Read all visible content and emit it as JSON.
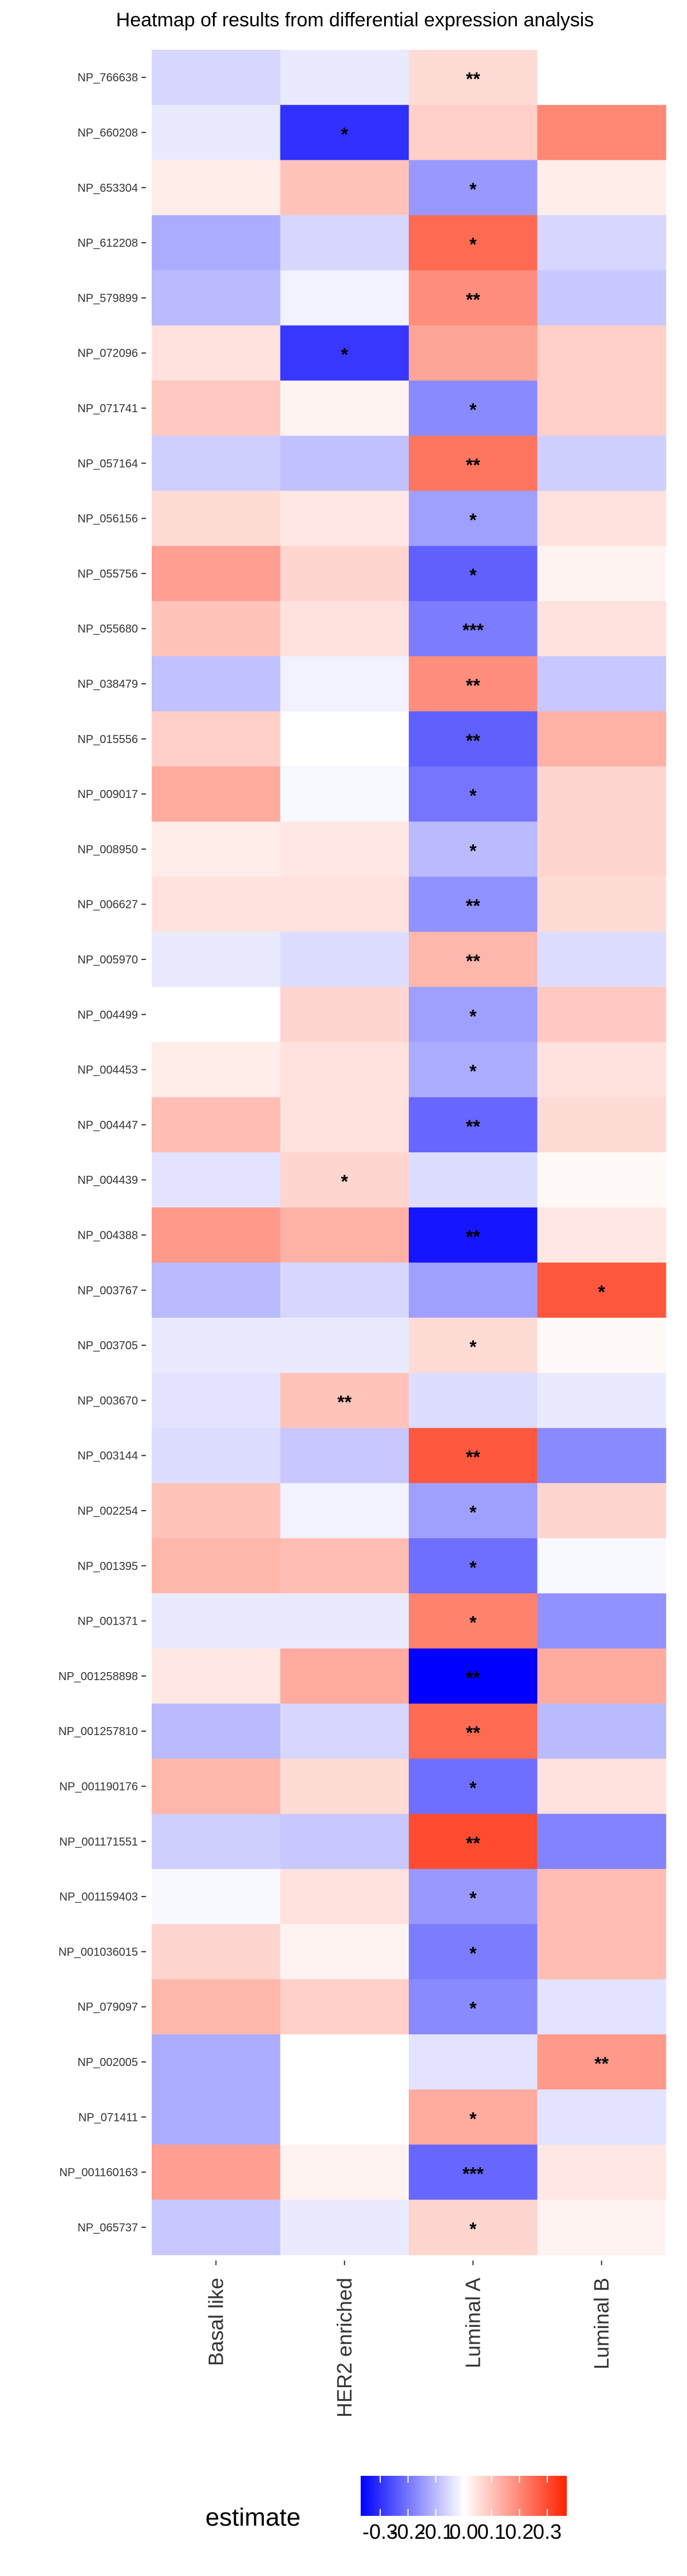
{
  "chart_data": {
    "type": "heatmap",
    "title": "Heatmap of results from differential expression analysis",
    "columns": [
      "Basal like",
      "HER2 enriched",
      "Luminal A",
      "Luminal B"
    ],
    "rows": [
      "NP_766638",
      "NP_660208",
      "NP_653304",
      "NP_612208",
      "NP_579899",
      "NP_072096",
      "NP_071741",
      "NP_057164",
      "NP_056156",
      "NP_055756",
      "NP_055680",
      "NP_038479",
      "NP_015556",
      "NP_009017",
      "NP_008950",
      "NP_006627",
      "NP_005970",
      "NP_004499",
      "NP_004453",
      "NP_004447",
      "NP_004439",
      "NP_004388",
      "NP_003767",
      "NP_003705",
      "NP_003670",
      "NP_003144",
      "NP_002254",
      "NP_001395",
      "NP_001371",
      "NP_001258898",
      "NP_001257810",
      "NP_001190176",
      "NP_001171551",
      "NP_001159403",
      "NP_001036015",
      "NP_079097",
      "NP_002005",
      "NP_071411",
      "NP_001160163",
      "NP_065737"
    ],
    "values": [
      [
        -0.06,
        -0.03,
        0.06,
        null
      ],
      [
        -0.03,
        -0.3,
        0.08,
        0.2
      ],
      [
        0.03,
        0.1,
        -0.15,
        0.03
      ],
      [
        -0.12,
        -0.06,
        0.25,
        -0.06
      ],
      [
        -0.1,
        -0.02,
        0.19,
        -0.08
      ],
      [
        0.05,
        -0.29,
        0.15,
        0.08
      ],
      [
        0.09,
        0.02,
        -0.17,
        0.08
      ],
      [
        -0.07,
        -0.09,
        0.23,
        -0.07
      ],
      [
        0.06,
        0.04,
        -0.14,
        0.05
      ],
      [
        0.16,
        0.07,
        -0.23,
        0.02
      ],
      [
        0.1,
        0.05,
        -0.19,
        0.05
      ],
      [
        -0.09,
        -0.02,
        0.19,
        -0.08
      ],
      [
        0.08,
        0.0,
        -0.23,
        0.13
      ],
      [
        0.14,
        -0.01,
        -0.2,
        0.07
      ],
      [
        0.03,
        0.04,
        -0.1,
        0.07
      ],
      [
        0.05,
        0.05,
        -0.16,
        0.06
      ],
      [
        -0.03,
        -0.05,
        0.12,
        -0.05
      ],
      [
        0.0,
        0.07,
        -0.14,
        0.09
      ],
      [
        0.03,
        0.05,
        -0.12,
        0.05
      ],
      [
        0.11,
        0.05,
        -0.22,
        0.06
      ],
      [
        -0.04,
        0.07,
        -0.05,
        0.01
      ],
      [
        0.17,
        0.13,
        -0.34,
        0.04
      ],
      [
        -0.1,
        -0.06,
        -0.14,
        0.28
      ],
      [
        -0.03,
        -0.03,
        0.06,
        0.01
      ],
      [
        -0.04,
        0.1,
        -0.05,
        -0.03
      ],
      [
        -0.05,
        -0.08,
        0.28,
        -0.17
      ],
      [
        0.1,
        -0.02,
        -0.14,
        0.07
      ],
      [
        0.12,
        0.11,
        -0.21,
        -0.01
      ],
      [
        -0.03,
        -0.03,
        0.21,
        -0.16
      ],
      [
        0.04,
        0.14,
        -0.37,
        0.14
      ],
      [
        -0.1,
        -0.06,
        0.25,
        -0.1
      ],
      [
        0.12,
        0.06,
        -0.21,
        0.05
      ],
      [
        -0.07,
        -0.08,
        0.3,
        -0.18
      ],
      [
        -0.01,
        0.05,
        -0.15,
        0.11
      ],
      [
        0.07,
        0.02,
        -0.19,
        0.11
      ],
      [
        0.12,
        0.08,
        -0.17,
        -0.04
      ],
      [
        -0.12,
        0.0,
        -0.04,
        0.17
      ],
      [
        -0.12,
        0.0,
        0.14,
        -0.04
      ],
      [
        0.16,
        0.02,
        -0.22,
        0.04
      ],
      [
        -0.08,
        -0.03,
        0.07,
        0.02
      ]
    ],
    "significance": [
      [
        "",
        "",
        "**",
        ""
      ],
      [
        "",
        "*",
        "",
        ""
      ],
      [
        "",
        "",
        "*",
        ""
      ],
      [
        "",
        "",
        "*",
        ""
      ],
      [
        "",
        "",
        "**",
        ""
      ],
      [
        "",
        "*",
        "",
        ""
      ],
      [
        "",
        "",
        "*",
        ""
      ],
      [
        "",
        "",
        "**",
        ""
      ],
      [
        "",
        "",
        "*",
        ""
      ],
      [
        "",
        "",
        "*",
        ""
      ],
      [
        "",
        "",
        "***",
        ""
      ],
      [
        "",
        "",
        "**",
        ""
      ],
      [
        "",
        "",
        "**",
        ""
      ],
      [
        "",
        "",
        "*",
        ""
      ],
      [
        "",
        "",
        "*",
        ""
      ],
      [
        "",
        "",
        "**",
        ""
      ],
      [
        "",
        "",
        "**",
        ""
      ],
      [
        "",
        "",
        "*",
        ""
      ],
      [
        "",
        "",
        "*",
        ""
      ],
      [
        "",
        "",
        "**",
        ""
      ],
      [
        "",
        "*",
        "",
        ""
      ],
      [
        "",
        "",
        "**",
        ""
      ],
      [
        "",
        "",
        "",
        "*"
      ],
      [
        "",
        "",
        "*",
        ""
      ],
      [
        "",
        "**",
        "",
        ""
      ],
      [
        "",
        "",
        "**",
        ""
      ],
      [
        "",
        "",
        "*",
        ""
      ],
      [
        "",
        "",
        "*",
        ""
      ],
      [
        "",
        "",
        "*",
        ""
      ],
      [
        "",
        "",
        "**",
        ""
      ],
      [
        "",
        "",
        "**",
        ""
      ],
      [
        "",
        "",
        "*",
        ""
      ],
      [
        "",
        "",
        "**",
        ""
      ],
      [
        "",
        "",
        "*",
        ""
      ],
      [
        "",
        "",
        "*",
        ""
      ],
      [
        "",
        "",
        "*",
        ""
      ],
      [
        "",
        "",
        "",
        "**"
      ],
      [
        "",
        "",
        "*",
        ""
      ],
      [
        "",
        "",
        "***",
        ""
      ],
      [
        "",
        "",
        "*",
        ""
      ]
    ],
    "legend": {
      "title": "estimate",
      "ticks": [
        -0.3,
        -0.2,
        -0.1,
        0.0,
        0.1,
        0.2,
        0.3
      ],
      "tick_labels": [
        "-0.3",
        "-0.2",
        "-0.1",
        "0.0",
        "0.1",
        "0.2",
        "0.3"
      ],
      "range": [
        -0.37,
        0.37
      ],
      "placement": "bottom"
    },
    "colors": {
      "low": "#0000ff",
      "mid": "#ffffff",
      "high": "#ff2200",
      "na": "#ffffff"
    }
  }
}
